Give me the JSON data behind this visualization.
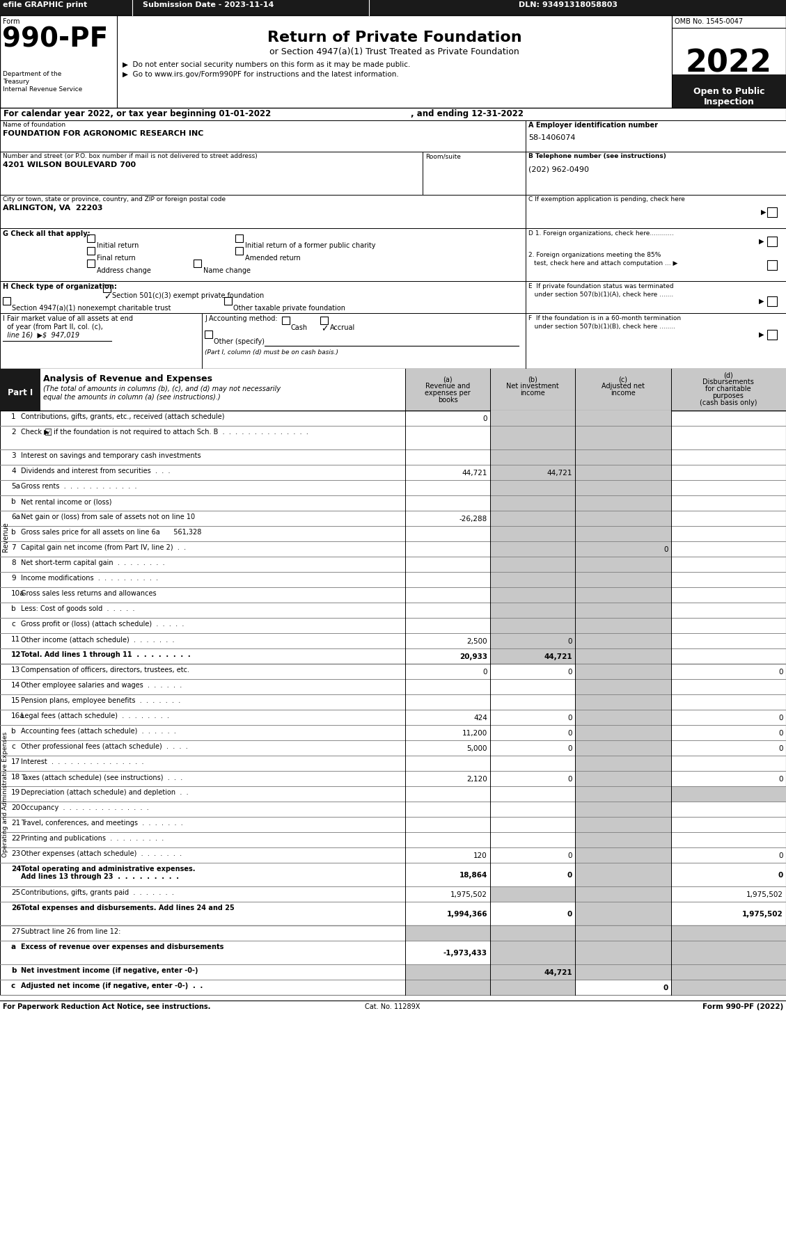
{
  "efile_text": "efile GRAPHIC print",
  "submission_date": "Submission Date - 2023-11-14",
  "dln": "DLN: 93491318058803",
  "omb": "OMB No. 1545-0047",
  "year": "2022",
  "title_main": "Return of Private Foundation",
  "title_sub": "or Section 4947(a)(1) Trust Treated as Private Foundation",
  "bullet1": "▶  Do not enter social security numbers on this form as it may be made public.",
  "bullet2": "▶  Go to www.irs.gov/Form990PF for instructions and the latest information.",
  "open_to_public": "Open to Public\nInspection",
  "cal_year": "For calendar year 2022, or tax year beginning 01-01-2022",
  "ending": ", and ending 12-31-2022",
  "name_label": "Name of foundation",
  "name_value": "FOUNDATION FOR AGRONOMIC RESEARCH INC",
  "ein_label": "A Employer identification number",
  "ein_value": "58-1406074",
  "address_label": "Number and street (or P.O. box number if mail is not delivered to street address)",
  "address_value": "4201 WILSON BOULEVARD 700",
  "room_label": "Room/suite",
  "phone_label": "B Telephone number (see instructions)",
  "phone_value": "(202) 962-0490",
  "city_label": "City or town, state or province, country, and ZIP or foreign postal code",
  "city_value": "ARLINGTON, VA  22203",
  "g_label": "G Check all that apply:",
  "initial_return": "Initial return",
  "initial_former": "Initial return of a former public charity",
  "final_return": "Final return",
  "amended_return": "Amended return",
  "address_change": "Address change",
  "name_change": "Name change",
  "h_501c3": "Section 501(c)(3) exempt private foundation",
  "h_4947": "Section 4947(a)(1) nonexempt charitable trust",
  "h_other": "Other taxable private foundation",
  "i_line1": "I Fair market value of all assets at end",
  "i_line2": "  of year (from Part II, col. (c),",
  "i_line3": "  line 16)  ▶$  947,019",
  "j_label": "J Accounting method:",
  "j_cash": "Cash",
  "j_accrual": "Accrual",
  "j_other": "Other (specify)",
  "j_note": "(Part I, column (d) must be on cash basis.)",
  "rows": [
    {
      "num": "1",
      "label": "Contributions, gifts, grants, etc., received (attach schedule)",
      "a": "0",
      "b": "",
      "c": "",
      "d": "",
      "shadeB": true,
      "shadeC": true,
      "shadeD": false
    },
    {
      "num": "2",
      "label": "Check ▶ ☑ if the foundation is not required to attach Sch. B  .  .  .  .  .  .  .  .  .  .  .  .  .  .",
      "a": "",
      "b": "",
      "c": "",
      "d": "",
      "shadeB": true,
      "shadeC": true,
      "shadeD": false,
      "tall": true
    },
    {
      "num": "3",
      "label": "Interest on savings and temporary cash investments",
      "a": "",
      "b": "",
      "c": "",
      "d": "",
      "shadeB": false,
      "shadeC": false,
      "shadeD": false
    },
    {
      "num": "4",
      "label": "Dividends and interest from securities  .  .  .",
      "a": "44,721",
      "b": "44,721",
      "c": "",
      "d": "",
      "shadeB": false,
      "shadeC": true,
      "shadeD": false
    },
    {
      "num": "5a",
      "label": "Gross rents  .  .  .  .  .  .  .  .  .  .  .  .",
      "a": "",
      "b": "",
      "c": "",
      "d": "",
      "shadeB": false,
      "shadeC": false,
      "shadeD": false
    },
    {
      "num": "b",
      "label": "Net rental income or (loss)",
      "a": "",
      "b": "",
      "c": "",
      "d": "",
      "shadeB": false,
      "shadeC": false,
      "shadeD": false
    },
    {
      "num": "6a",
      "label": "Net gain or (loss) from sale of assets not on line 10",
      "a": "-26,288",
      "b": "",
      "c": "",
      "d": "",
      "shadeB": true,
      "shadeC": true,
      "shadeD": false
    },
    {
      "num": "b",
      "label": "Gross sales price for all assets on line 6a  561,328",
      "a": "",
      "b": "",
      "c": "",
      "d": "",
      "shadeB": true,
      "shadeC": true,
      "shadeD": false
    },
    {
      "num": "7",
      "label": "Capital gain net income (from Part IV, line 2)  .  .",
      "a": "",
      "b": "",
      "c": "0",
      "d": "",
      "shadeB": false,
      "shadeC": false,
      "shadeD": false
    },
    {
      "num": "8",
      "label": "Net short-term capital gain  .  .  .  .  .  .  .  .",
      "a": "",
      "b": "",
      "c": "",
      "d": "",
      "shadeB": false,
      "shadeC": false,
      "shadeD": false
    },
    {
      "num": "9",
      "label": "Income modifications  .  .  .  .  .  .  .  .  .  .",
      "a": "",
      "b": "",
      "c": "",
      "d": "",
      "shadeB": false,
      "shadeC": false,
      "shadeD": false
    },
    {
      "num": "10a",
      "label": "Gross sales less returns and allowances",
      "a": "",
      "b": "",
      "c": "",
      "d": "",
      "shadeB": false,
      "shadeC": false,
      "shadeD": false
    },
    {
      "num": "b",
      "label": "Less: Cost of goods sold  .  .  .  .  .",
      "a": "",
      "b": "",
      "c": "",
      "d": "",
      "shadeB": false,
      "shadeC": false,
      "shadeD": false
    },
    {
      "num": "c",
      "label": "Gross profit or (loss) (attach schedule)  .  .  .  .  .",
      "a": "",
      "b": "",
      "c": "",
      "d": "",
      "shadeB": false,
      "shadeC": false,
      "shadeD": false
    },
    {
      "num": "11",
      "label": "Other income (attach schedule)  .  .  .  .  .  .  .",
      "a": "2,500",
      "b": "0",
      "c": "",
      "d": "",
      "shadeB": false,
      "shadeC": true,
      "shadeD": false
    },
    {
      "num": "12",
      "label": "Total. Add lines 1 through 11  .  .  .  .  .  .  .  .",
      "a": "20,933",
      "b": "44,721",
      "c": "",
      "d": "",
      "bold": true,
      "shadeB": false,
      "shadeC": true,
      "shadeD": false
    }
  ],
  "expense_rows": [
    {
      "num": "13",
      "label": "Compensation of officers, directors, trustees, etc.",
      "a": "0",
      "b": "0",
      "c": "",
      "d": "0",
      "shadeC": true
    },
    {
      "num": "14",
      "label": "Other employee salaries and wages  .  .  .  .  .  .",
      "a": "",
      "b": "",
      "c": "",
      "d": "",
      "shadeC": false
    },
    {
      "num": "15",
      "label": "Pension plans, employee benefits  .  .  .  .  .  .  .",
      "a": "",
      "b": "",
      "c": "",
      "d": "",
      "shadeC": false
    },
    {
      "num": "16a",
      "label": "Legal fees (attach schedule)  .  .  .  .  .  .  .  .",
      "a": "424",
      "b": "0",
      "c": "",
      "d": "0",
      "shadeC": true
    },
    {
      "num": "b",
      "label": "Accounting fees (attach schedule)  .  .  .  .  .  .",
      "a": "11,200",
      "b": "0",
      "c": "",
      "d": "0",
      "shadeC": false
    },
    {
      "num": "c",
      "label": "Other professional fees (attach schedule)  .  .  .  .",
      "a": "5,000",
      "b": "0",
      "c": "",
      "d": "0",
      "shadeC": false
    },
    {
      "num": "17",
      "label": "Interest  .  .  .  .  .  .  .  .  .  .  .  .  .  .  .",
      "a": "",
      "b": "",
      "c": "",
      "d": "",
      "shadeC": false
    },
    {
      "num": "18",
      "label": "Taxes (attach schedule) (see instructions)  .  .  .",
      "a": "2,120",
      "b": "0",
      "c": "",
      "d": "0",
      "shadeC": true
    },
    {
      "num": "19",
      "label": "Depreciation (attach schedule) and depletion  .  .",
      "a": "",
      "b": "",
      "c": "",
      "d": "",
      "shadeC": false,
      "shadeD": true
    },
    {
      "num": "20",
      "label": "Occupancy  .  .  .  .  .  .  .  .  .  .  .  .  .  .",
      "a": "",
      "b": "",
      "c": "",
      "d": "",
      "shadeC": false
    },
    {
      "num": "21",
      "label": "Travel, conferences, and meetings  .  .  .  .  .  .  .",
      "a": "",
      "b": "",
      "c": "",
      "d": "",
      "shadeC": false
    },
    {
      "num": "22",
      "label": "Printing and publications  .  .  .  .  .  .  .  .  .",
      "a": "",
      "b": "",
      "c": "",
      "d": "",
      "shadeC": false
    },
    {
      "num": "23",
      "label": "Other expenses (attach schedule)  .  .  .  .  .  .  .",
      "a": "120",
      "b": "0",
      "c": "",
      "d": "0",
      "shadeC": true
    },
    {
      "num": "24",
      "label": "Total operating and administrative expenses.\nAdd lines 13 through 23  .  .  .  .  .  .  .  .  .",
      "a": "18,864",
      "b": "0",
      "c": "",
      "d": "0",
      "bold": true,
      "shadeC": true,
      "tall": true
    },
    {
      "num": "25",
      "label": "Contributions, gifts, grants paid  .  .  .  .  .  .  .",
      "a": "1,975,502",
      "b": "",
      "c": "",
      "d": "1,975,502",
      "shadeB": true,
      "shadeC": true
    },
    {
      "num": "26",
      "label": "Total expenses and disbursements. Add lines 24 and 25",
      "a": "1,994,366",
      "b": "0",
      "c": "",
      "d": "1,975,502",
      "bold": true,
      "shadeC": true,
      "tall": true
    }
  ],
  "bottom_rows": [
    {
      "num": "27",
      "label": "Subtract line 26 from line 12:",
      "a": "",
      "b": "",
      "c": "",
      "d": "",
      "shadeA": true
    },
    {
      "num": "a",
      "label": "Excess of revenue over expenses and disbursements",
      "a": "-1,973,433",
      "b": "",
      "c": "",
      "d": "",
      "bold": true,
      "tall": true
    },
    {
      "num": "b",
      "label": "Net investment income (if negative, enter -0-)",
      "a": "",
      "b": "44,721",
      "c": "",
      "d": "",
      "bold": true
    },
    {
      "num": "c",
      "label": "Adjusted net income (if negative, enter -0-)  .  .",
      "a": "",
      "b": "",
      "c": "0",
      "d": "",
      "bold": true
    }
  ],
  "footer_left": "For Paperwork Reduction Act Notice, see instructions.",
  "footer_cat": "Cat. No. 11289X",
  "footer_right": "Form 990-PF (2022)"
}
